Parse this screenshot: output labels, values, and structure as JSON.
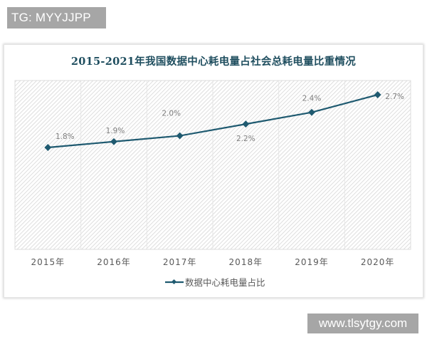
{
  "watermarks": {
    "top": "TG: MYYJJPP",
    "bottom": "www.tlsytgy.com"
  },
  "colors": {
    "line": "#1f5a70",
    "marker": "#1f5a70",
    "title": "#1f4e5f",
    "hatch": "#d9d9d9",
    "watermark_bg": "#a6a6a6"
  },
  "chart_data": {
    "type": "line",
    "title": "2015-2021年我国数据中心耗电量占社会总耗电量比重情况",
    "categories": [
      "2015年",
      "2016年",
      "2017年",
      "2018年",
      "2019年",
      "2020年"
    ],
    "series": [
      {
        "name": "数据中心耗电量占比",
        "values": [
          1.8,
          1.9,
          2.0,
          2.2,
          2.4,
          2.7
        ],
        "labels": [
          "1.8%",
          "1.9%",
          "2.0%",
          "2.2%",
          "2.4%",
          "2.7%"
        ]
      }
    ],
    "xlabel": "",
    "ylabel": "",
    "yaxis_visible": false,
    "grid": "vertical category separators",
    "legend_position": "bottom",
    "plot_background": "diagonal hatch"
  }
}
